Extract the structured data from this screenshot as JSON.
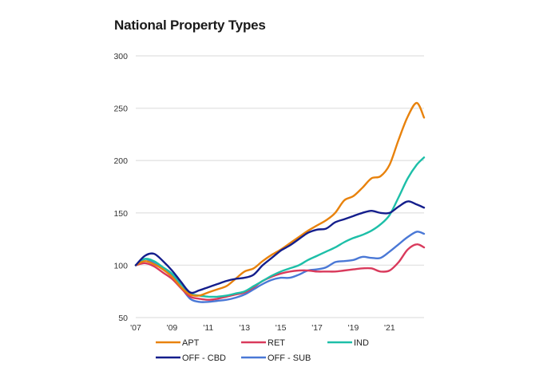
{
  "chart_data": {
    "type": "line",
    "title": "National Property Types",
    "xlabel": "",
    "ylabel": "",
    "xlim": [
      2007,
      2022.9
    ],
    "ylim": [
      50,
      300
    ],
    "yticks": [
      50,
      100,
      150,
      200,
      250,
      300
    ],
    "xticks": [
      {
        "value": 2007,
        "label": "'07"
      },
      {
        "value": 2009,
        "label": "'09"
      },
      {
        "value": 2011,
        "label": "'11"
      },
      {
        "value": 2013,
        "label": "'13"
      },
      {
        "value": 2015,
        "label": "'15"
      },
      {
        "value": 2017,
        "label": "'17"
      },
      {
        "value": 2019,
        "label": "'19"
      },
      {
        "value": 2021,
        "label": "'21"
      }
    ],
    "grid": true,
    "legend_position": "bottom",
    "x": [
      2007,
      2007.5,
      2008,
      2008.5,
      2009,
      2009.5,
      2010,
      2010.5,
      2011,
      2011.5,
      2012,
      2012.5,
      2013,
      2013.5,
      2014,
      2014.5,
      2015,
      2015.5,
      2016,
      2016.5,
      2017,
      2017.5,
      2018,
      2018.5,
      2019,
      2019.5,
      2020,
      2020.5,
      2021,
      2021.5,
      2022,
      2022.5,
      2022.9
    ],
    "series": [
      {
        "name": "APT",
        "color": "#E8820C",
        "values": [
          100,
          104,
          101,
          96,
          89,
          79,
          72,
          71,
          74,
          77,
          80,
          87,
          94,
          97,
          104,
          110,
          115,
          121,
          127,
          133,
          138,
          143,
          150,
          162,
          166,
          174,
          183,
          185,
          196,
          220,
          242,
          255,
          241
        ]
      },
      {
        "name": "RET",
        "color": "#D93A5C",
        "values": [
          100,
          102,
          99,
          93,
          87,
          78,
          70,
          68,
          67,
          68,
          70,
          72,
          74,
          79,
          85,
          89,
          92,
          94,
          95,
          95,
          94,
          94,
          94,
          95,
          96,
          97,
          97,
          94,
          95,
          103,
          115,
          120,
          117
        ]
      },
      {
        "name": "IND",
        "color": "#1DBFA8",
        "values": [
          100,
          106,
          104,
          98,
          92,
          82,
          73,
          71,
          70,
          70,
          71,
          73,
          75,
          80,
          85,
          90,
          94,
          97,
          100,
          105,
          109,
          113,
          117,
          122,
          126,
          129,
          133,
          139,
          148,
          165,
          183,
          196,
          203
        ]
      },
      {
        "name": "OFF - CBD",
        "color": "#141E8C",
        "values": [
          100,
          109,
          111,
          104,
          95,
          84,
          74,
          76,
          79,
          82,
          85,
          87,
          88,
          91,
          100,
          107,
          114,
          119,
          125,
          131,
          134,
          135,
          141,
          144,
          147,
          150,
          152,
          150,
          150,
          156,
          161,
          158,
          155
        ]
      },
      {
        "name": "OFF - SUB",
        "color": "#4A78D6",
        "values": [
          100,
          106,
          102,
          96,
          90,
          79,
          68,
          65,
          65,
          66,
          67,
          69,
          72,
          77,
          82,
          86,
          88,
          88,
          91,
          95,
          96,
          98,
          103,
          104,
          105,
          108,
          107,
          107,
          113,
          120,
          127,
          132,
          130
        ]
      }
    ]
  }
}
